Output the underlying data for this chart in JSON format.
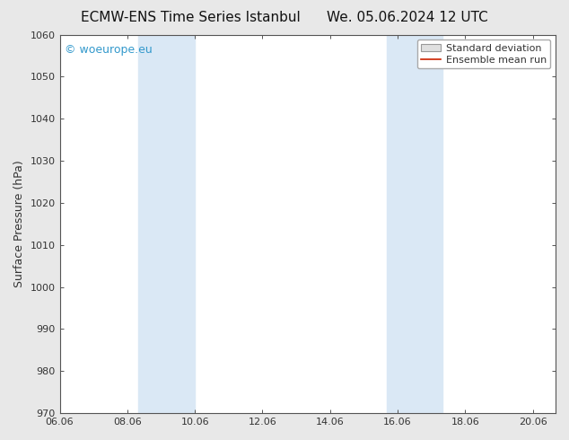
{
  "title_left": "ECMW-ENS Time Series Istanbul",
  "title_right": "We. 05.06.2024 12 UTC",
  "ylabel": "Surface Pressure (hPa)",
  "xlim": [
    0,
    14.67
  ],
  "ylim": [
    970,
    1060
  ],
  "yticks": [
    970,
    980,
    990,
    1000,
    1010,
    1020,
    1030,
    1040,
    1050,
    1060
  ],
  "xtick_labels": [
    "06.06",
    "08.06",
    "10.06",
    "12.06",
    "14.06",
    "16.06",
    "18.06",
    "20.06"
  ],
  "xtick_positions": [
    0,
    2,
    4,
    6,
    8,
    10,
    12,
    14
  ],
  "shaded_bands": [
    {
      "x_start": 2.33,
      "x_end": 4.0,
      "color": "#dae8f5"
    },
    {
      "x_start": 9.67,
      "x_end": 11.33,
      "color": "#dae8f5"
    }
  ],
  "watermark_text": "© woeurope.eu",
  "watermark_color": "#3399cc",
  "legend_std_dev_label": "Standard deviation",
  "legend_ensemble_label": "Ensemble mean run",
  "legend_std_dev_facecolor": "#e0e0e0",
  "legend_std_dev_edgecolor": "#999999",
  "legend_ensemble_color": "#cc2200",
  "background_color": "#e8e8e8",
  "plot_bg_color": "#ffffff",
  "title_fontsize": 11,
  "ylabel_fontsize": 9,
  "tick_fontsize": 8,
  "legend_fontsize": 8,
  "watermark_fontsize": 9,
  "tick_color": "#333333",
  "spine_color": "#555555"
}
